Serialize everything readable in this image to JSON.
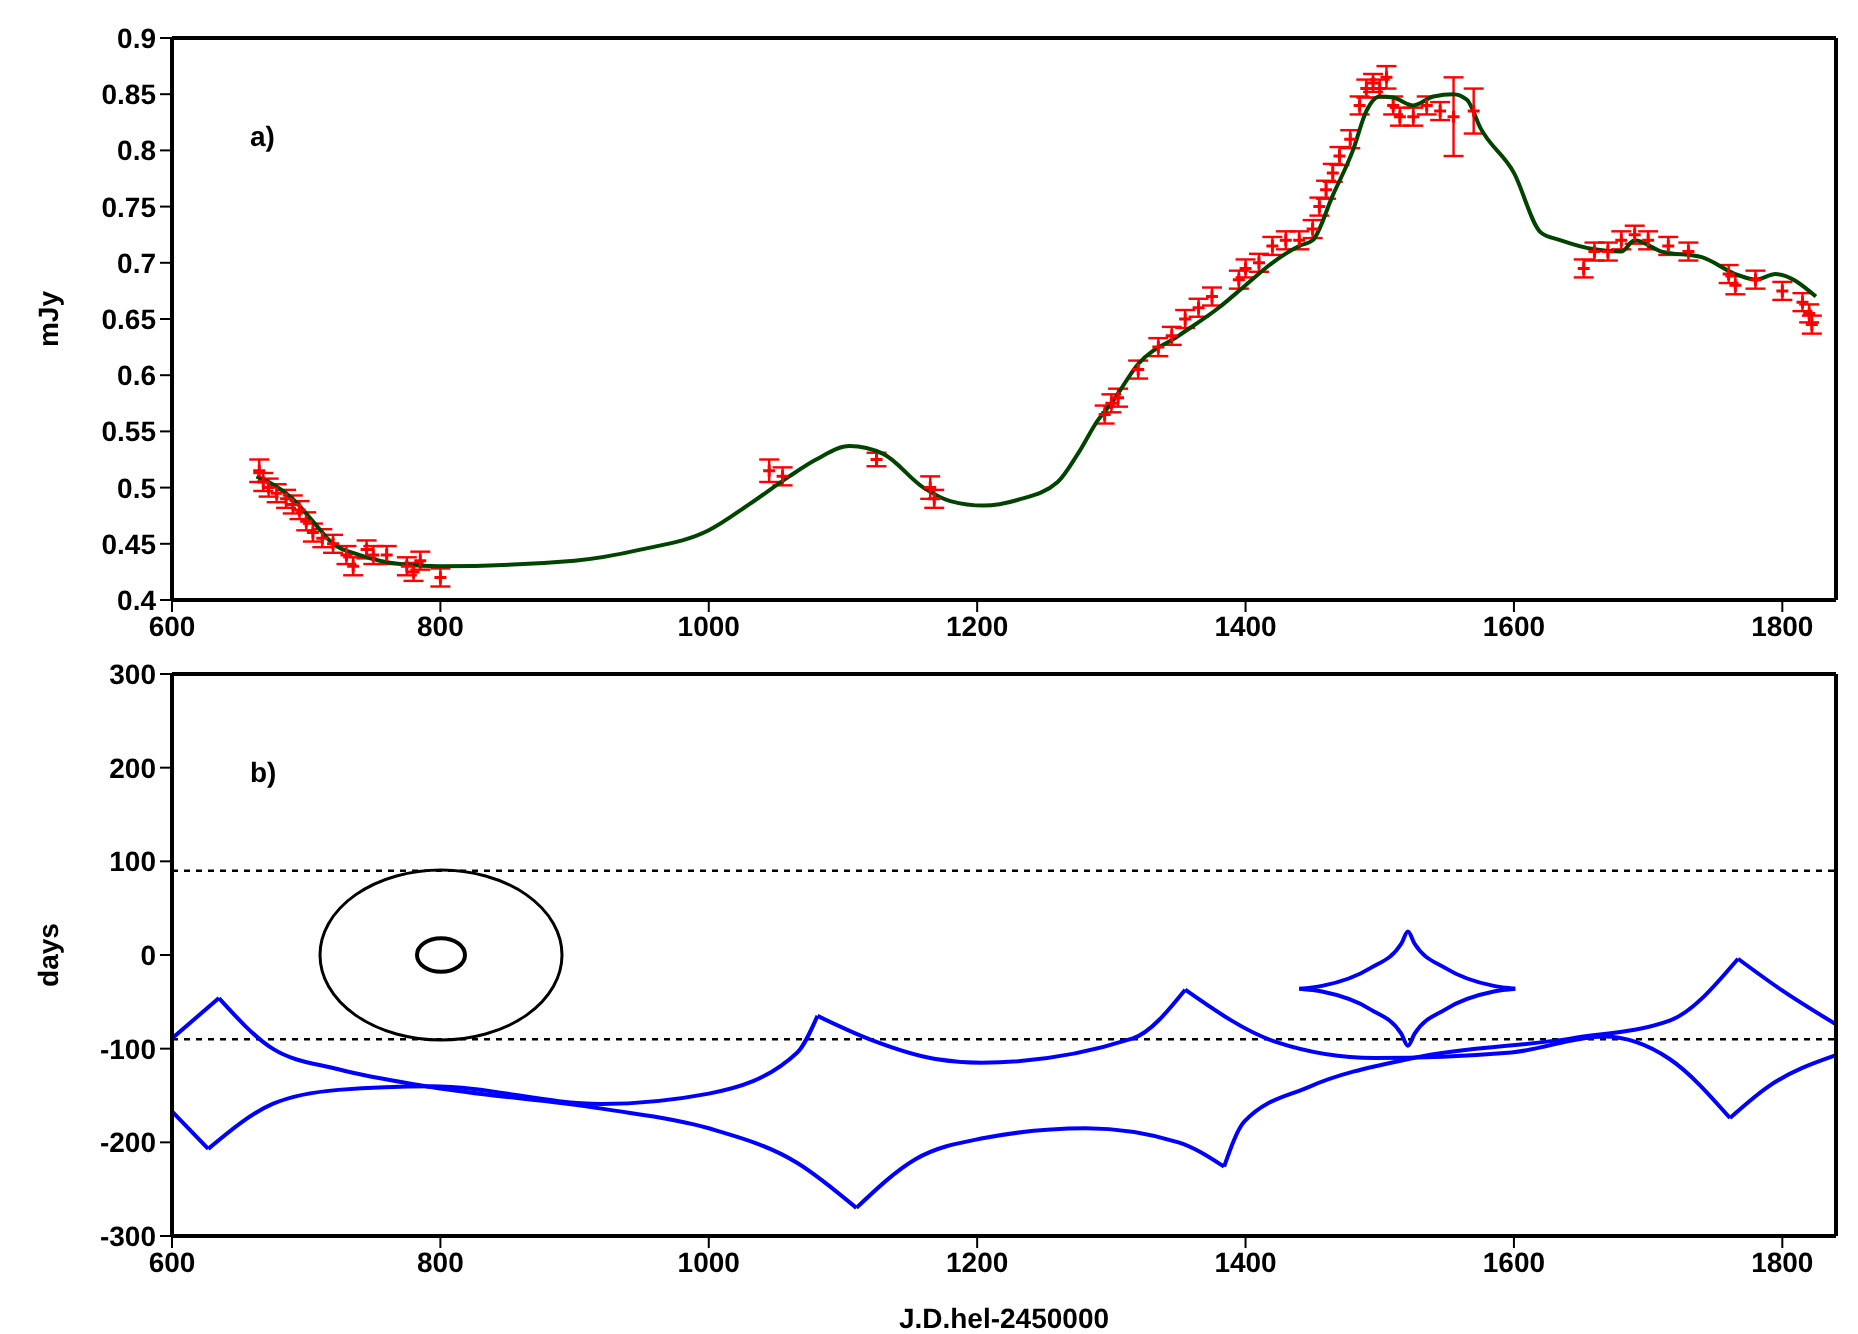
{
  "chart_data": [
    {
      "type": "line",
      "ylabel": "mJy",
      "annotations": [
        "a)"
      ],
      "xlim": [
        600,
        1840
      ],
      "xticks": [
        600,
        800,
        1000,
        1200,
        1400,
        1600,
        1800
      ],
      "ylim": [
        0.4,
        0.9
      ],
      "yticks": [
        0.4,
        0.45,
        0.5,
        0.55,
        0.6,
        0.65,
        0.7,
        0.75,
        0.8,
        0.85,
        0.9
      ],
      "series": [
        {
          "type": "scatter",
          "color": "#ff0000",
          "marker": "cross",
          "x": [
            665,
            668,
            672,
            678,
            685,
            690,
            695,
            700,
            705,
            712,
            720,
            730,
            735,
            745,
            750,
            760,
            775,
            780,
            785,
            800,
            1045,
            1055,
            1125,
            1165,
            1168,
            1295,
            1300,
            1305,
            1320,
            1335,
            1345,
            1355,
            1365,
            1375,
            1395,
            1400,
            1410,
            1420,
            1430,
            1440,
            1450,
            1455,
            1460,
            1465,
            1470,
            1478,
            1485,
            1490,
            1495,
            1500,
            1505,
            1510,
            1515,
            1525,
            1535,
            1545,
            1555,
            1570,
            1652,
            1660,
            1670,
            1680,
            1690,
            1700,
            1715,
            1730,
            1760,
            1765,
            1780,
            1800,
            1815,
            1820,
            1822
          ],
          "values": [
            0.515,
            0.505,
            0.5,
            0.495,
            0.49,
            0.485,
            0.48,
            0.47,
            0.46,
            0.455,
            0.45,
            0.44,
            0.43,
            0.445,
            0.44,
            0.44,
            0.43,
            0.425,
            0.435,
            0.42,
            0.515,
            0.51,
            0.525,
            0.5,
            0.49,
            0.565,
            0.575,
            0.58,
            0.605,
            0.625,
            0.635,
            0.65,
            0.66,
            0.67,
            0.685,
            0.695,
            0.7,
            0.715,
            0.72,
            0.72,
            0.73,
            0.75,
            0.765,
            0.78,
            0.795,
            0.81,
            0.84,
            0.855,
            0.86,
            0.855,
            0.865,
            0.84,
            0.83,
            0.83,
            0.84,
            0.835,
            0.83,
            0.835,
            0.695,
            0.71,
            0.71,
            0.72,
            0.725,
            0.72,
            0.715,
            0.71,
            0.69,
            0.68,
            0.685,
            0.675,
            0.665,
            0.655,
            0.645
          ],
          "errors": [
            0.01,
            0.008,
            0.008,
            0.008,
            0.008,
            0.008,
            0.008,
            0.008,
            0.008,
            0.008,
            0.008,
            0.008,
            0.008,
            0.008,
            0.008,
            0.008,
            0.008,
            0.008,
            0.008,
            0.008,
            0.01,
            0.008,
            0.006,
            0.01,
            0.008,
            0.008,
            0.008,
            0.008,
            0.008,
            0.008,
            0.008,
            0.008,
            0.008,
            0.008,
            0.008,
            0.008,
            0.008,
            0.008,
            0.008,
            0.008,
            0.008,
            0.008,
            0.008,
            0.008,
            0.008,
            0.008,
            0.008,
            0.008,
            0.008,
            0.008,
            0.01,
            0.008,
            0.008,
            0.008,
            0.008,
            0.008,
            0.035,
            0.02,
            0.008,
            0.008,
            0.008,
            0.008,
            0.008,
            0.008,
            0.008,
            0.008,
            0.008,
            0.008,
            0.008,
            0.008,
            0.008,
            0.008,
            0.008
          ]
        },
        {
          "color": "#004400",
          "x": [
            663,
            690,
            705,
            720,
            740,
            770,
            800,
            900,
            950,
            1000,
            1030,
            1060,
            1080,
            1105,
            1130,
            1160,
            1180,
            1205,
            1230,
            1260,
            1275,
            1290,
            1300,
            1320,
            1350,
            1380,
            1400,
            1420,
            1440,
            1450,
            1465,
            1480,
            1490,
            1500,
            1510,
            1525,
            1540,
            1555,
            1565,
            1575,
            1600,
            1620,
            1635,
            1660,
            1680,
            1690,
            1710,
            1740,
            1765,
            1780,
            1795,
            1825
          ],
          "values": [
            0.51,
            0.49,
            0.47,
            0.45,
            0.44,
            0.432,
            0.43,
            0.435,
            0.445,
            0.462,
            0.485,
            0.51,
            0.525,
            0.537,
            0.53,
            0.5,
            0.488,
            0.484,
            0.489,
            0.505,
            0.53,
            0.56,
            0.575,
            0.61,
            0.635,
            0.66,
            0.68,
            0.7,
            0.715,
            0.72,
            0.76,
            0.8,
            0.835,
            0.848,
            0.847,
            0.84,
            0.848,
            0.85,
            0.845,
            0.82,
            0.78,
            0.727,
            0.72,
            0.712,
            0.71,
            0.72,
            0.71,
            0.705,
            0.69,
            0.685,
            0.69,
            0.67
          ]
        }
      ]
    },
    {
      "type": "line",
      "ylabel": "days",
      "xlabel": "J.D.hel-2450000",
      "annotations": [
        "b)"
      ],
      "xlim": [
        600,
        1840
      ],
      "xticks": [
        600,
        800,
        1000,
        1200,
        1400,
        1600,
        1800
      ],
      "ylim": [
        -300,
        300
      ],
      "yticks": [
        -300,
        -200,
        -100,
        0,
        100,
        200,
        300
      ],
      "ref_lines": [
        {
          "axis": "y",
          "value": 90,
          "color": "#000000",
          "line_style": "dotted"
        },
        {
          "axis": "y",
          "value": -90,
          "color": "#000000",
          "line_style": "dotted"
        }
      ],
      "series": [
        {
          "color": "#0000ff",
          "x": [
            600,
            635
          ],
          "values": [
            -89,
            -46
          ]
        },
        {
          "color": "#0000ff",
          "x": [
            600,
            627
          ],
          "values": [
            -167,
            -207
          ]
        },
        {
          "color": "#0000ff",
          "x": [
            635,
            675,
            724,
            793,
            920,
            1000,
            1066,
            1110
          ],
          "values": [
            -46,
            -100,
            -122,
            -141,
            -164,
            -185,
            -222,
            -270
          ]
        },
        {
          "color": "#0000ff",
          "x": [
            627,
            675,
            724,
            793,
            920,
            1000,
            1066,
            1081
          ],
          "values": [
            -207,
            -159,
            -144,
            -140,
            -159,
            -148,
            -104,
            -65
          ]
        },
        {
          "color": "#0000ff",
          "x": [
            1081,
            1120,
            1169,
            1203,
            1316,
            1355
          ],
          "values": [
            -65,
            -90,
            -111,
            -115,
            -89,
            -37
          ]
        },
        {
          "color": "#0000ff",
          "x": [
            1110,
            1154,
            1203,
            1281,
            1350,
            1384
          ],
          "values": [
            -270,
            -218,
            -196,
            -185,
            -200,
            -226
          ]
        },
        {
          "color": "#0000ff",
          "x": [
            1355,
            1423,
            1496,
            1598,
            1667,
            1716,
            1761
          ],
          "values": [
            -37,
            -93,
            -110,
            -104,
            -87,
            -111,
            -174
          ]
        },
        {
          "color": "#0000ff",
          "x": [
            1384,
            1399,
            1447,
            1525,
            1643,
            1716,
            1767
          ],
          "values": [
            -226,
            -178,
            -141,
            -110,
            -89,
            -70,
            -4
          ]
        },
        {
          "color": "#0000ff",
          "x": [
            1761,
            1789,
            1840
          ],
          "values": [
            -174,
            -141,
            -107
          ]
        },
        {
          "color": "#0000ff",
          "x": [
            1767,
            1799,
            1840
          ],
          "values": [
            -4,
            -37,
            -74
          ]
        },
        {
          "color": "#0000ff",
          "x": [
            1440,
            1457,
            1493,
            1516,
            1521,
            1526,
            1549,
            1585,
            1601
          ],
          "values": [
            -36,
            -33,
            -14,
            12,
            25,
            12,
            -14,
            -33,
            -36
          ]
        },
        {
          "color": "#0000ff",
          "x": [
            1440,
            1457,
            1493,
            1516,
            1521,
            1526,
            1549,
            1585,
            1601
          ],
          "values": [
            -36,
            -39,
            -58,
            -84,
            -97,
            -84,
            -58,
            -39,
            -36
          ]
        }
      ]
    }
  ]
}
